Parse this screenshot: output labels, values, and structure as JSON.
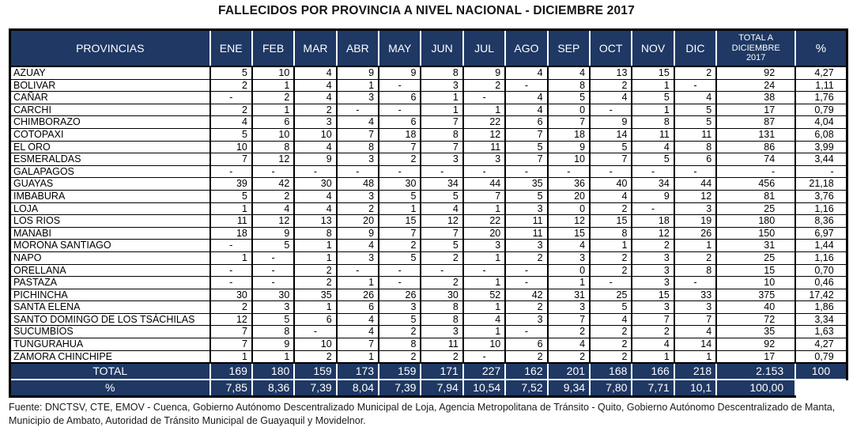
{
  "title": "FALLECIDOS POR PROVINCIA A NIVEL NACIONAL - DICIEMBRE 2017",
  "colors": {
    "header_bg": "#1F3864",
    "header_text": "#FFFFFF",
    "grid_border": "#000000",
    "body_bg": "#FFFFFF",
    "body_text": "#000000"
  },
  "table": {
    "header": {
      "provinces": "PROVINCIAS",
      "months": [
        "ENE",
        "FEB",
        "MAR",
        "ABR",
        "MAY",
        "JUN",
        "JUL",
        "AGO",
        "SEP",
        "OCT",
        "NOV",
        "DIC"
      ],
      "total_lines": [
        "TOTAL A",
        "DICIEMBRE",
        "2017"
      ],
      "percent": "%"
    },
    "rows": [
      {
        "province": "AZUAY",
        "values": [
          "5",
          "10",
          "4",
          "9",
          "9",
          "8",
          "9",
          "4",
          "4",
          "13",
          "15",
          "2"
        ],
        "total": "92",
        "percent": "4,27"
      },
      {
        "province": "BOLIVAR",
        "values": [
          "2",
          "1",
          "4",
          "1",
          "-",
          "3",
          "2",
          "-",
          "8",
          "2",
          "1",
          "-"
        ],
        "total": "24",
        "percent": "1,11"
      },
      {
        "province": "CAÑAR",
        "values": [
          "-",
          "2",
          "4",
          "3",
          "6",
          "1",
          "-",
          "4",
          "5",
          "4",
          "5",
          "4"
        ],
        "total": "38",
        "percent": "1,76"
      },
      {
        "province": "CARCHI",
        "values": [
          "2",
          "1",
          "2",
          "-",
          "-",
          "1",
          "1",
          "4",
          "0",
          "-",
          "1",
          "5"
        ],
        "total": "17",
        "percent": "0,79"
      },
      {
        "province": "CHIMBORAZO",
        "values": [
          "4",
          "6",
          "3",
          "4",
          "6",
          "7",
          "22",
          "6",
          "7",
          "9",
          "8",
          "5"
        ],
        "total": "87",
        "percent": "4,04"
      },
      {
        "province": "COTOPAXI",
        "values": [
          "5",
          "10",
          "10",
          "7",
          "18",
          "8",
          "12",
          "7",
          "18",
          "14",
          "11",
          "11"
        ],
        "total": "131",
        "percent": "6,08"
      },
      {
        "province": "EL ORO",
        "values": [
          "10",
          "8",
          "4",
          "8",
          "7",
          "7",
          "11",
          "5",
          "9",
          "5",
          "4",
          "8"
        ],
        "total": "86",
        "percent": "3,99"
      },
      {
        "province": "ESMERALDAS",
        "values": [
          "7",
          "12",
          "9",
          "3",
          "2",
          "3",
          "3",
          "7",
          "10",
          "7",
          "5",
          "6"
        ],
        "total": "74",
        "percent": "3,44"
      },
      {
        "province": "GALAPAGOS",
        "values": [
          "-",
          "-",
          "-",
          "-",
          "-",
          "-",
          "-",
          "-",
          "-",
          "-",
          "-",
          "-"
        ],
        "total": "-",
        "percent": "-"
      },
      {
        "province": "GUAYAS",
        "values": [
          "39",
          "42",
          "30",
          "48",
          "30",
          "34",
          "44",
          "35",
          "36",
          "40",
          "34",
          "44"
        ],
        "total": "456",
        "percent": "21,18"
      },
      {
        "province": "IMBABURA",
        "values": [
          "5",
          "2",
          "4",
          "3",
          "5",
          "5",
          "7",
          "5",
          "20",
          "4",
          "9",
          "12"
        ],
        "total": "81",
        "percent": "3,76"
      },
      {
        "province": "LOJA",
        "values": [
          "1",
          "4",
          "4",
          "2",
          "1",
          "4",
          "1",
          "3",
          "0",
          "2",
          "-",
          "3"
        ],
        "total": "25",
        "percent": "1,16"
      },
      {
        "province": "LOS RIOS",
        "values": [
          "11",
          "12",
          "13",
          "20",
          "15",
          "12",
          "22",
          "11",
          "12",
          "15",
          "18",
          "19"
        ],
        "total": "180",
        "percent": "8,36"
      },
      {
        "province": "MANABI",
        "values": [
          "18",
          "9",
          "8",
          "9",
          "7",
          "7",
          "20",
          "11",
          "15",
          "8",
          "12",
          "26"
        ],
        "total": "150",
        "percent": "6,97"
      },
      {
        "province": "MORONA SANTIAGO",
        "values": [
          "-",
          "5",
          "1",
          "4",
          "2",
          "5",
          "3",
          "3",
          "4",
          "1",
          "2",
          "1"
        ],
        "total": "31",
        "percent": "1,44"
      },
      {
        "province": "NAPO",
        "values": [
          "1",
          "-",
          "1",
          "3",
          "5",
          "2",
          "1",
          "2",
          "3",
          "2",
          "3",
          "2"
        ],
        "total": "25",
        "percent": "1,16"
      },
      {
        "province": "ORELLANA",
        "values": [
          "-",
          "-",
          "2",
          "-",
          "-",
          "-",
          "-",
          "-",
          "0",
          "2",
          "3",
          "8"
        ],
        "total": "15",
        "percent": "0,70"
      },
      {
        "province": "PASTAZA",
        "values": [
          "-",
          "-",
          "2",
          "1",
          "-",
          "2",
          "1",
          "-",
          "1",
          "-",
          "3",
          "-"
        ],
        "total": "10",
        "percent": "0,46"
      },
      {
        "province": "PICHINCHA",
        "values": [
          "30",
          "30",
          "35",
          "26",
          "26",
          "30",
          "52",
          "42",
          "31",
          "25",
          "15",
          "33"
        ],
        "total": "375",
        "percent": "17,42"
      },
      {
        "province": "SANTA ELENA",
        "values": [
          "2",
          "3",
          "1",
          "6",
          "3",
          "8",
          "1",
          "2",
          "3",
          "5",
          "3",
          "3"
        ],
        "total": "40",
        "percent": "1,86"
      },
      {
        "province": "SANTO DOMINGO DE LOS TSÁCHILAS",
        "values": [
          "12",
          "5",
          "6",
          "4",
          "5",
          "8",
          "4",
          "3",
          "7",
          "4",
          "7",
          "7"
        ],
        "total": "72",
        "percent": "3,34"
      },
      {
        "province": "SUCUMBÍOS",
        "values": [
          "7",
          "8",
          "-",
          "4",
          "2",
          "3",
          "1",
          "-",
          "2",
          "2",
          "2",
          "4"
        ],
        "total": "35",
        "percent": "1,63"
      },
      {
        "province": "TUNGURAHUA",
        "values": [
          "7",
          "9",
          "10",
          "7",
          "8",
          "11",
          "10",
          "6",
          "4",
          "2",
          "4",
          "14"
        ],
        "total": "92",
        "percent": "4,27"
      },
      {
        "province": "ZAMORA CHINCHIPE",
        "values": [
          "1",
          "1",
          "2",
          "1",
          "2",
          "2",
          "-",
          "2",
          "2",
          "2",
          "1",
          "1"
        ],
        "total": "17",
        "percent": "0,79"
      }
    ],
    "footer_rows": [
      {
        "label": "TOTAL",
        "values": [
          "169",
          "180",
          "159",
          "173",
          "159",
          "171",
          "227",
          "162",
          "201",
          "168",
          "166",
          "218"
        ],
        "total": "2.153",
        "percent": "100"
      },
      {
        "label": "%",
        "values": [
          "7,85",
          "8,36",
          "7,39",
          "8,04",
          "7,39",
          "7,94",
          "10,54",
          "7,52",
          "9,34",
          "7,80",
          "7,71",
          "10,1"
        ],
        "total": "100,00",
        "percent": ""
      }
    ]
  },
  "source": {
    "line1": "Fuente: DNCTSV, CTE, EMOV - Cuenca, Gobierno Autónomo Descentralizado Municipal de Loja, Agencia Metropolitana de Tránsito - Quito, Gobierno Autónomo Descentralizado de Manta,",
    "line2": "Municipio de Ambato, Autoridad de Tránsito Municipal de Guayaquil y Movidelnor."
  }
}
